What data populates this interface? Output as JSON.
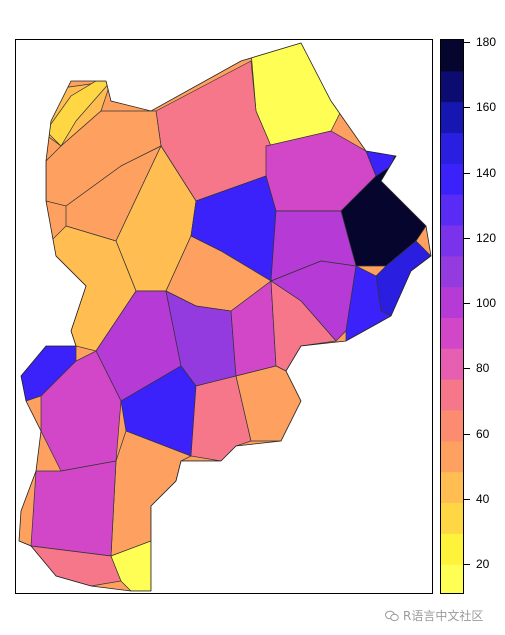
{
  "map": {
    "type": "choropleth",
    "colors": [
      "#fffe54",
      "#fff23a",
      "#ffd745",
      "#ffbd52",
      "#fea05f",
      "#fd8b70",
      "#f6778a",
      "#e75fb0",
      "#d246c8",
      "#b53ad6",
      "#943be0",
      "#7a33ea",
      "#5a2bf5",
      "#3b22fb",
      "#2a1ee0",
      "#1616b0",
      "#0b0b70",
      "#05052e"
    ]
  },
  "legend": {
    "min": 10,
    "max": 180,
    "ticks": [
      "20",
      "40",
      "60",
      "80",
      "100",
      "120",
      "140",
      "160",
      "180"
    ]
  },
  "watermark": {
    "text": "R语言中文社区",
    "icon": "wechat-icon"
  }
}
